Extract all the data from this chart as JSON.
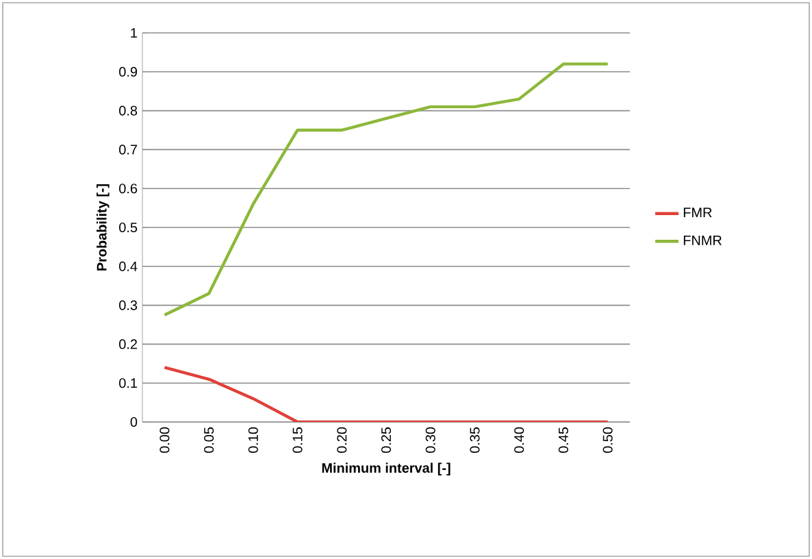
{
  "chart_data": {
    "type": "line",
    "xlabel": "Minimum interval [-]",
    "ylabel": "Probability [-]",
    "categories": [
      "0.00",
      "0.05",
      "0.10",
      "0.15",
      "0.20",
      "0.25",
      "0.30",
      "0.35",
      "0.40",
      "0.45",
      "0.50"
    ],
    "series": [
      {
        "name": "FMR",
        "color": "#e0403a",
        "values": [
          0.14,
          0.11,
          0.06,
          0,
          0,
          0,
          0,
          0,
          0,
          0,
          0
        ]
      },
      {
        "name": "FNMR",
        "color": "#8cb83a",
        "values": [
          0.275,
          0.33,
          0.56,
          0.75,
          0.75,
          0.78,
          0.81,
          0.81,
          0.83,
          0.92,
          0.92
        ]
      }
    ],
    "ylim": [
      0,
      1
    ],
    "yticks": [
      0,
      0.1,
      0.2,
      0.3,
      0.4,
      0.5,
      0.6,
      0.7,
      0.8,
      0.9,
      1
    ],
    "grid": "y",
    "legend": "right"
  }
}
